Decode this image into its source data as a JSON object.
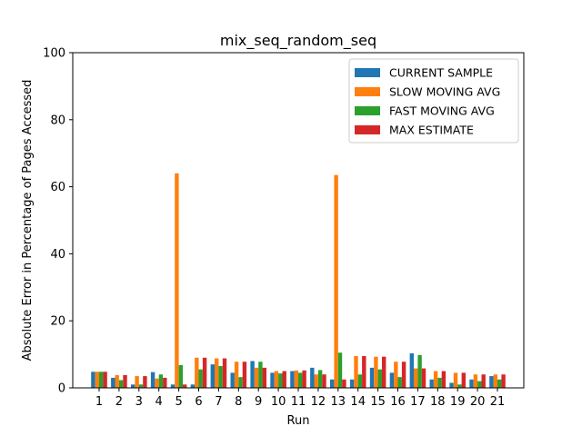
{
  "chart_data": {
    "type": "bar",
    "title": "mix_seq_random_seq",
    "xlabel": "Run",
    "ylabel": "Absolute Error in Percentage of Pages Accessed",
    "ylim": [
      0,
      100
    ],
    "yticks": [
      0,
      20,
      40,
      60,
      80,
      100
    ],
    "categories": [
      "1",
      "2",
      "3",
      "4",
      "5",
      "6",
      "7",
      "8",
      "9",
      "10",
      "11",
      "12",
      "13",
      "14",
      "15",
      "16",
      "17",
      "18",
      "19",
      "20",
      "21"
    ],
    "legend_position": "top-right",
    "grid": false,
    "series": [
      {
        "name": "CURRENT SAMPLE",
        "color": "#1f77b4",
        "values": [
          4.8,
          3.0,
          1.0,
          4.7,
          1.0,
          1.0,
          7.0,
          4.5,
          8.0,
          4.5,
          5.0,
          6.0,
          2.5,
          2.5,
          6.0,
          4.5,
          10.3,
          2.5,
          1.5,
          2.5,
          3.5
        ]
      },
      {
        "name": "SLOW MOVING AVG",
        "color": "#ff7f0e",
        "values": [
          4.8,
          3.8,
          3.5,
          2.8,
          64.0,
          9.0,
          8.8,
          7.8,
          6.0,
          5.0,
          5.2,
          4.0,
          63.5,
          9.5,
          9.3,
          7.8,
          5.8,
          5.0,
          4.5,
          4.0,
          4.0
        ]
      },
      {
        "name": "FAST MOVING AVG",
        "color": "#2ca02c",
        "values": [
          4.8,
          2.3,
          1.0,
          4.0,
          6.8,
          5.5,
          6.5,
          3.2,
          7.8,
          4.3,
          4.5,
          5.3,
          10.5,
          4.0,
          5.5,
          3.2,
          9.8,
          3.0,
          1.0,
          2.0,
          2.5
        ]
      },
      {
        "name": "MAX ESTIMATE",
        "color": "#d62728",
        "values": [
          4.8,
          3.8,
          3.5,
          3.0,
          1.0,
          9.0,
          8.8,
          7.8,
          6.0,
          5.0,
          5.2,
          4.0,
          2.5,
          9.5,
          9.3,
          7.8,
          5.8,
          5.0,
          4.5,
          4.0,
          4.0
        ]
      }
    ]
  }
}
